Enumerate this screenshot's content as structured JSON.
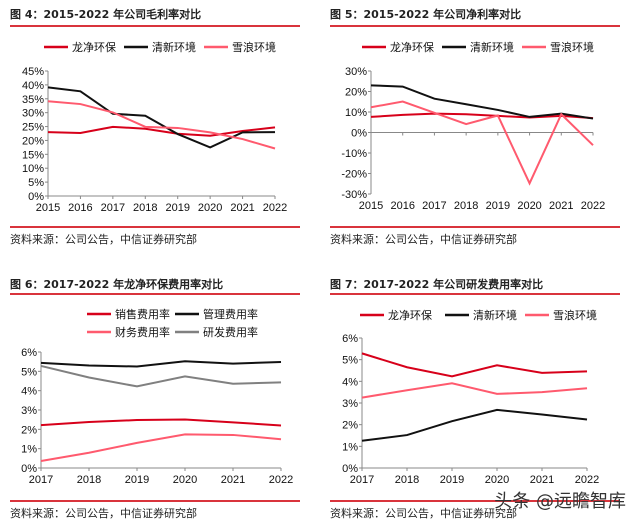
{
  "source_text": "资料来源：公司公告，中信证券研究部",
  "watermark": "头条 @远瞻智库",
  "chart_data": [
    {
      "type": "line",
      "title": "图 4：2015-2022 年公司毛利率对比",
      "categories": [
        "2015",
        "2016",
        "2017",
        "2018",
        "2019",
        "2020",
        "2021",
        "2022"
      ],
      "ylim": [
        0,
        45
      ],
      "yticks": [
        0,
        5,
        10,
        15,
        20,
        25,
        30,
        35,
        40,
        45
      ],
      "ytick_suffix": "%",
      "legend": "top",
      "grid": false,
      "series": [
        {
          "name": "龙净环保",
          "color": "#d7001a",
          "values": [
            23.0,
            22.7,
            24.9,
            24.2,
            22.4,
            21.7,
            23.4,
            24.7
          ]
        },
        {
          "name": "清新环境",
          "color": "#111111",
          "values": [
            39.1,
            37.7,
            29.6,
            28.9,
            22.3,
            17.5,
            22.9,
            23.0
          ]
        },
        {
          "name": "雪浪环境",
          "color": "#ff5a6e",
          "values": [
            34.1,
            33.1,
            30.1,
            24.9,
            24.5,
            22.9,
            20.5,
            17.1
          ]
        }
      ]
    },
    {
      "type": "line",
      "title": "图 5：2015-2022 年公司净利率对比",
      "categories": [
        "2015",
        "2016",
        "2017",
        "2018",
        "2019",
        "2020",
        "2021",
        "2022"
      ],
      "ylim": [
        -30,
        30
      ],
      "yticks": [
        -30,
        -20,
        -10,
        0,
        10,
        20,
        30
      ],
      "ytick_suffix": "%",
      "legend": "top",
      "grid": false,
      "series": [
        {
          "name": "龙净环保",
          "color": "#d7001a",
          "values": [
            7.6,
            8.6,
            9.2,
            8.9,
            8.1,
            7.3,
            8.1,
            7.0
          ]
        },
        {
          "name": "清新环境",
          "color": "#111111",
          "values": [
            23.0,
            22.4,
            16.5,
            13.8,
            11.0,
            7.6,
            9.2,
            6.8
          ]
        },
        {
          "name": "雪浪环境",
          "color": "#ff5a6e",
          "values": [
            12.3,
            15.1,
            9.6,
            4.1,
            8.3,
            -24.8,
            8.9,
            -6.2
          ]
        }
      ]
    },
    {
      "type": "line",
      "title": "图 6：2017-2022 年龙净环保费用率对比",
      "categories": [
        "2017",
        "2018",
        "2019",
        "2020",
        "2021",
        "2022"
      ],
      "ylim": [
        0,
        6
      ],
      "yticks": [
        0,
        1,
        2,
        3,
        4,
        5,
        6
      ],
      "ytick_suffix": "%",
      "legend": "top",
      "grid": false,
      "series": [
        {
          "name": "销售费用率",
          "color": "#d7001a",
          "values": [
            2.22,
            2.38,
            2.48,
            2.51,
            2.36,
            2.2
          ]
        },
        {
          "name": "管理费用率",
          "color": "#111111",
          "values": [
            5.44,
            5.3,
            5.25,
            5.52,
            5.4,
            5.48
          ]
        },
        {
          "name": "财务费用率",
          "color": "#ff5a6e",
          "values": [
            0.36,
            0.79,
            1.3,
            1.74,
            1.71,
            1.49
          ]
        },
        {
          "name": "研发费用率",
          "color": "#808080",
          "values": [
            5.28,
            4.68,
            4.22,
            4.74,
            4.36,
            4.43
          ]
        }
      ]
    },
    {
      "type": "line",
      "title": "图 7：2017-2022 年公司研发费用率对比",
      "categories": [
        "2017",
        "2018",
        "2019",
        "2020",
        "2021",
        "2022"
      ],
      "ylim": [
        0,
        6
      ],
      "yticks": [
        0,
        1,
        2,
        3,
        4,
        5,
        6
      ],
      "ytick_suffix": "%",
      "legend": "top",
      "grid": false,
      "series": [
        {
          "name": "龙净环保",
          "color": "#d7001a",
          "values": [
            5.29,
            4.65,
            4.23,
            4.74,
            4.39,
            4.46
          ]
        },
        {
          "name": "清新环境",
          "color": "#111111",
          "values": [
            1.26,
            1.52,
            2.16,
            2.68,
            2.47,
            2.24
          ]
        },
        {
          "name": "雪浪环境",
          "color": "#ff5a6e",
          "values": [
            3.25,
            3.59,
            3.91,
            3.42,
            3.5,
            3.68
          ]
        }
      ]
    }
  ]
}
